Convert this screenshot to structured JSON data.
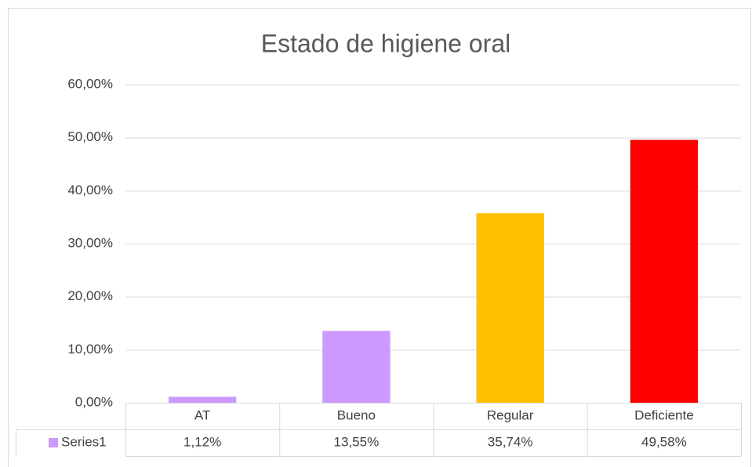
{
  "chart_data": {
    "type": "bar",
    "title": "Estado de higiene oral",
    "categories": [
      "AT",
      "Bueno",
      "Regular",
      "Deficiente"
    ],
    "series": [
      {
        "name": "Series1",
        "color": "#cc99ff",
        "colors": [
          "#cc99ff",
          "#cc99ff",
          "#ffc000",
          "#ff0000"
        ],
        "values": [
          1.12,
          13.55,
          35.74,
          49.58
        ],
        "value_labels": [
          "1,12%",
          "13,55%",
          "35,74%",
          "49,58%"
        ]
      }
    ],
    "ylim": [
      0,
      60
    ],
    "yticks": [
      {
        "value": 0,
        "label": "0,00%"
      },
      {
        "value": 10,
        "label": "10,00%"
      },
      {
        "value": 20,
        "label": "20,00%"
      },
      {
        "value": 30,
        "label": "30,00%"
      },
      {
        "value": 40,
        "label": "40,00%"
      },
      {
        "value": 50,
        "label": "50,00%"
      },
      {
        "value": 60,
        "label": "60,00%"
      }
    ],
    "grid": true,
    "data_table": true
  }
}
